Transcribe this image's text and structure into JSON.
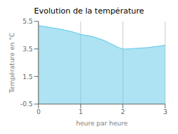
{
  "chart_data": {
    "type": "area",
    "title": "Evolution de la température",
    "x_label": "heure par heure",
    "y_label": "Température en °C",
    "x": [
      0,
      0.1,
      0.2,
      0.3,
      0.4,
      0.5,
      0.6,
      0.7,
      0.8,
      0.9,
      1.0,
      1.1,
      1.2,
      1.3,
      1.4,
      1.5,
      1.6,
      1.7,
      1.8,
      1.9,
      2.0,
      2.1,
      2.2,
      2.3,
      2.4,
      2.5,
      2.6,
      2.7,
      2.8,
      2.9,
      3.0
    ],
    "values": [
      5.2,
      5.15,
      5.1,
      5.05,
      5.0,
      4.95,
      4.88,
      4.82,
      4.75,
      4.65,
      4.55,
      4.5,
      4.45,
      4.38,
      4.28,
      4.18,
      4.05,
      3.9,
      3.75,
      3.6,
      3.5,
      3.5,
      3.52,
      3.54,
      3.56,
      3.58,
      3.6,
      3.65,
      3.68,
      3.72,
      3.78
    ],
    "color": "#5bc8e8",
    "xlim": [
      0,
      3
    ],
    "ylim": [
      -0.5,
      5.5
    ],
    "xticks": [
      0,
      1,
      2,
      3
    ],
    "yticks": [
      -0.5,
      1.5,
      3.5,
      5.5
    ],
    "grid": "x"
  }
}
